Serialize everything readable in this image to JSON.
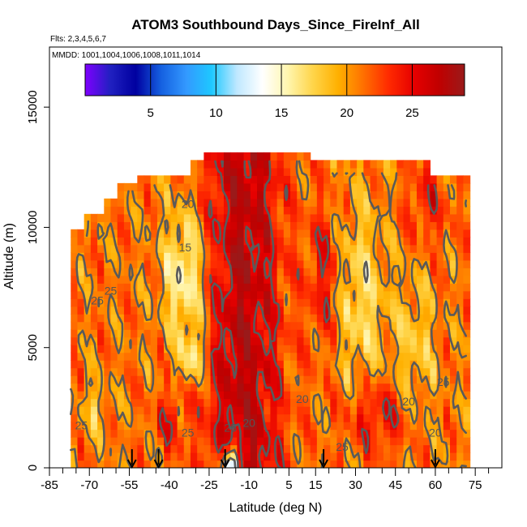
{
  "chart_data": {
    "type": "heatmap",
    "title": "ATOM3 Southbound Days_Since_FireInf_All",
    "subtitle_flights": "Flts: 2,3,4,5,6,7",
    "subtitle_dates": "MMDD: 1001,1004,1006,1008,1011,1014",
    "xlabel": "Latitude (deg N)",
    "ylabel": "Altitude (m)",
    "xlim": [
      -85,
      85
    ],
    "ylim": [
      0,
      17500
    ],
    "x_ticks": [
      -85,
      -70,
      -55,
      -40,
      -25,
      -10,
      5,
      15,
      30,
      45,
      60,
      75
    ],
    "x_minor_ticks": [
      -80,
      -75,
      -65,
      -60,
      -50,
      -45,
      -35,
      -30,
      -20,
      -15,
      -5,
      0,
      10,
      20,
      25,
      35,
      40,
      50,
      55,
      65,
      70,
      80
    ],
    "y_ticks": [
      0,
      5000,
      10000,
      15000
    ],
    "colorbar": {
      "range": [
        0,
        29
      ],
      "ticks": [
        5,
        10,
        15,
        20,
        25
      ],
      "colors": [
        "#7f00ff",
        "#2020c0",
        "#0000a0",
        "#1560e0",
        "#3399ff",
        "#1ec8ff",
        "#bfe8ff",
        "#ffffff",
        "#fff6b0",
        "#ffd54a",
        "#ffb000",
        "#ff7000",
        "#ff2a00",
        "#e60000",
        "#c00000",
        "#9a1a1a"
      ]
    },
    "contour_levels": [
      15,
      20,
      25
    ],
    "contour_labels": [
      "20",
      "15",
      "25",
      "25",
      "25",
      "20",
      "20",
      "25",
      "20",
      "25",
      "25",
      "25",
      "20"
    ],
    "flight_marker_latitudes": [
      -54,
      -44,
      -19,
      18,
      60
    ]
  }
}
